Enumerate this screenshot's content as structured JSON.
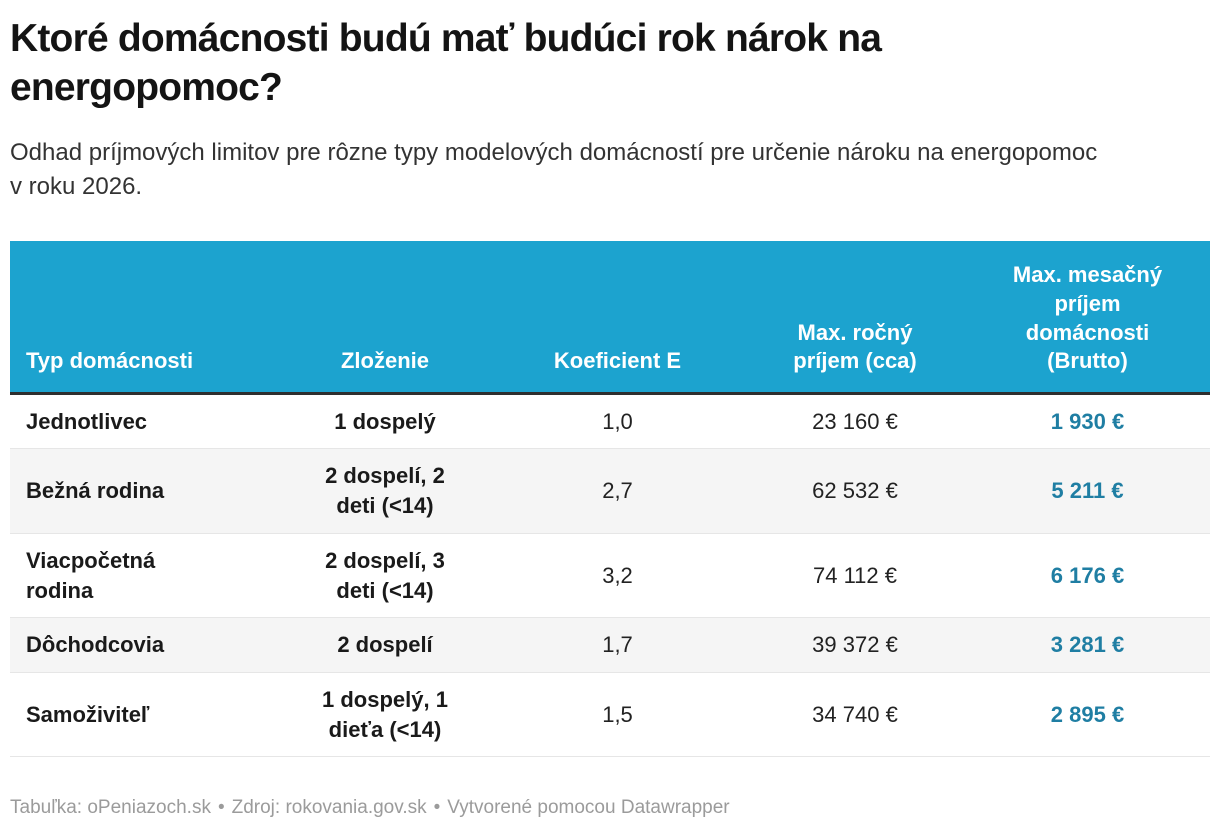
{
  "colors": {
    "header_bg": "#1ca3cf",
    "header_border": "#2e2e2e",
    "accent_value": "#1f7ea3",
    "zebra": "#f5f5f5",
    "divider": "#e6e6e6",
    "footer_text": "#9b9b9b"
  },
  "chart_data": {
    "type": "table",
    "title": "Ktoré domácnosti budú mať budúci rok nárok na energopomoc?",
    "subtitle": "Odhad príjmových limitov pre rôzne typy modelových domácností pre určenie nároku na energopomoc v roku 2026.",
    "columns": [
      "Typ domácnosti",
      "Zloženie",
      "Koeficient E",
      "Max. ročný príjem (cca)",
      "Max. mesačný príjem domácnosti (Brutto)"
    ],
    "rows": [
      [
        "Jednotlivec",
        "1 dospelý",
        "1,0",
        "23 160 €",
        "1 930 €"
      ],
      [
        "Bežná rodina",
        "2 dospelí, 2 deti (<14)",
        "2,7",
        "62 532 €",
        "5 211 €"
      ],
      [
        "Viacpočetná rodina",
        "2 dospelí, 3 deti (<14)",
        "3,2",
        "74 112 €",
        "6 176 €"
      ],
      [
        "Dôchodcovia",
        "2 dospelí",
        "1,7",
        "39 372 €",
        "3 281 €"
      ],
      [
        "Samoživiteľ",
        "1 dospelý, 1 dieťa (<14)",
        "1,5",
        "34 740 €",
        "2 895 €"
      ]
    ],
    "numeric": {
      "koeficient_e": [
        1.0,
        2.7,
        3.2,
        1.7,
        1.5
      ],
      "max_rocny_prijem_eur": [
        23160,
        62532,
        74112,
        39372,
        34740
      ],
      "max_mesacny_prijem_eur": [
        1930,
        5211,
        6176,
        3281,
        2895
      ]
    },
    "layout_hints": {
      "header_text_color": "#ffffff",
      "zebra_striping": true,
      "last_column_accent": true
    }
  },
  "footer": {
    "table_credit": "Tabuľka: oPeniazoch.sk",
    "sep": "•",
    "source": "Zdroj: rokovania.gov.sk",
    "created_with": "Vytvorené pomocou Datawrapper"
  }
}
